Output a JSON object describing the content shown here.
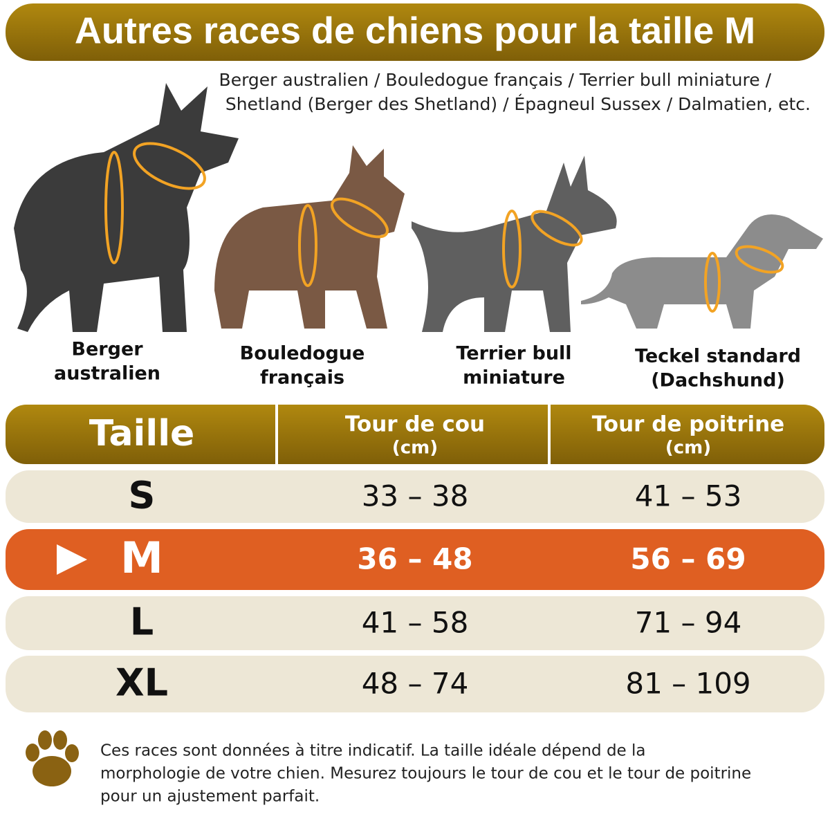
{
  "header": {
    "title": "Autres races de chiens pour la taille M"
  },
  "subtitle_lines": [
    "Berger australien / Bouledogue français / Terrier bull miniature /",
    "Shetland (Berger des Shetland) / Épagneul Sussex / Dalmatien, etc."
  ],
  "dogs": [
    {
      "label_lines": [
        "Berger",
        "australien"
      ]
    },
    {
      "label_lines": [
        "Bouledogue",
        "français"
      ]
    },
    {
      "label_lines": [
        "Terrier bull",
        "miniature"
      ]
    },
    {
      "label_lines": [
        "Teckel standard",
        "(Dachshund)"
      ]
    }
  ],
  "table": {
    "headers": [
      [
        "Taille"
      ],
      [
        "Tour de cou",
        "(cm)"
      ],
      [
        "Tour de poitrine",
        "(cm)"
      ]
    ],
    "rows": [
      [
        "S",
        "33 – 38",
        "41 – 53"
      ],
      [
        "M",
        "36 – 48",
        "56 – 69"
      ],
      [
        "L",
        "41 – 58",
        "71 – 94"
      ],
      [
        "XL",
        "48 – 74",
        "81 – 109"
      ]
    ]
  },
  "note_lines": [
    "Ces races sont données à titre indicatif. La taille idéale dépend de la",
    "morphologie de votre chien. Mesurez toujours le tour de cou et le tour de poitrine",
    "pour un ajustement parfait."
  ]
}
